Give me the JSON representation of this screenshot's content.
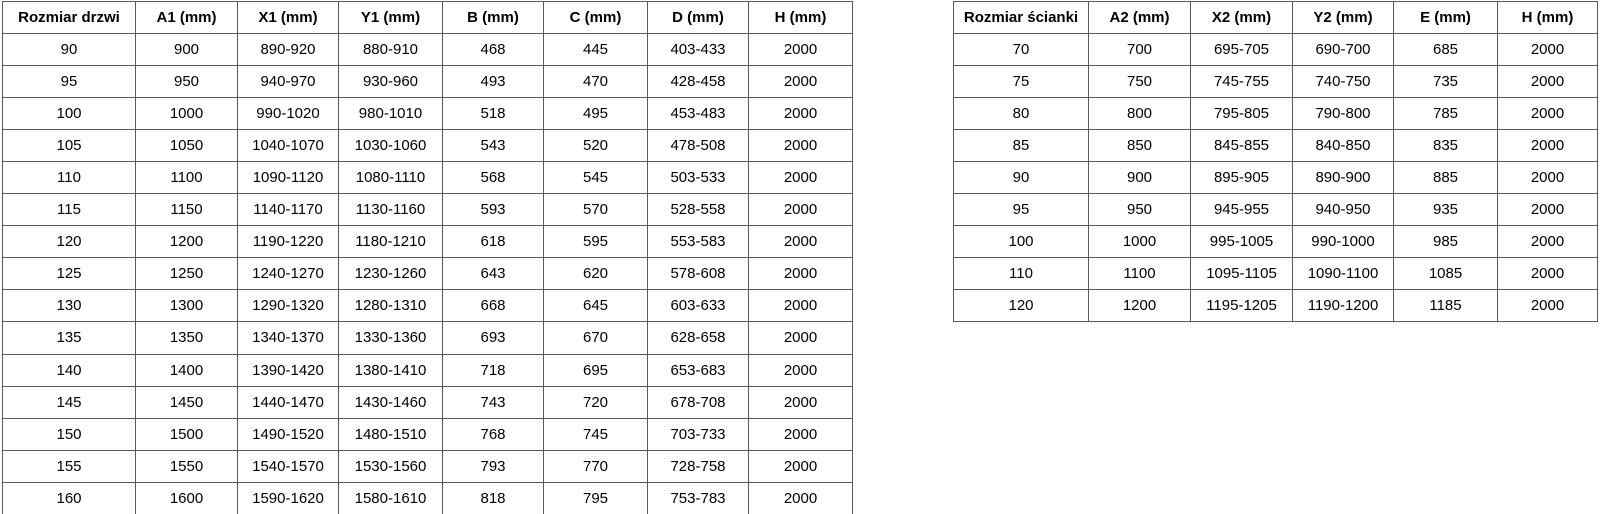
{
  "page": {
    "background_color": "#ffffff",
    "border_color": "#595959",
    "text_color": "#000000"
  },
  "tables": [
    {
      "name": "door-size-table",
      "headers": [
        "Rozmiar drzwi",
        "A1 (mm)",
        "X1 (mm)",
        "Y1 (mm)",
        "B (mm)",
        "C (mm)",
        "D (mm)",
        "H (mm)"
      ],
      "rows": [
        [
          "90",
          "900",
          "890-920",
          "880-910",
          "468",
          "445",
          "403-433",
          "2000"
        ],
        [
          "95",
          "950",
          "940-970",
          "930-960",
          "493",
          "470",
          "428-458",
          "2000"
        ],
        [
          "100",
          "1000",
          "990-1020",
          "980-1010",
          "518",
          "495",
          "453-483",
          "2000"
        ],
        [
          "105",
          "1050",
          "1040-1070",
          "1030-1060",
          "543",
          "520",
          "478-508",
          "2000"
        ],
        [
          "110",
          "1100",
          "1090-1120",
          "1080-1110",
          "568",
          "545",
          "503-533",
          "2000"
        ],
        [
          "115",
          "1150",
          "1140-1170",
          "1130-1160",
          "593",
          "570",
          "528-558",
          "2000"
        ],
        [
          "120",
          "1200",
          "1190-1220",
          "1180-1210",
          "618",
          "595",
          "553-583",
          "2000"
        ],
        [
          "125",
          "1250",
          "1240-1270",
          "1230-1260",
          "643",
          "620",
          "578-608",
          "2000"
        ],
        [
          "130",
          "1300",
          "1290-1320",
          "1280-1310",
          "668",
          "645",
          "603-633",
          "2000"
        ],
        [
          "135",
          "1350",
          "1340-1370",
          "1330-1360",
          "693",
          "670",
          "628-658",
          "2000"
        ],
        [
          "140",
          "1400",
          "1390-1420",
          "1380-1410",
          "718",
          "695",
          "653-683",
          "2000"
        ],
        [
          "145",
          "1450",
          "1440-1470",
          "1430-1460",
          "743",
          "720",
          "678-708",
          "2000"
        ],
        [
          "150",
          "1500",
          "1490-1520",
          "1480-1510",
          "768",
          "745",
          "703-733",
          "2000"
        ],
        [
          "155",
          "1550",
          "1540-1570",
          "1530-1560",
          "793",
          "770",
          "728-758",
          "2000"
        ],
        [
          "160",
          "1600",
          "1590-1620",
          "1580-1610",
          "818",
          "795",
          "753-783",
          "2000"
        ]
      ]
    },
    {
      "name": "wall-panel-size-table",
      "headers": [
        "Rozmiar ścianki",
        "A2 (mm)",
        "X2 (mm)",
        "Y2 (mm)",
        "E (mm)",
        "H (mm)"
      ],
      "rows": [
        [
          "70",
          "700",
          "695-705",
          "690-700",
          "685",
          "2000"
        ],
        [
          "75",
          "750",
          "745-755",
          "740-750",
          "735",
          "2000"
        ],
        [
          "80",
          "800",
          "795-805",
          "790-800",
          "785",
          "2000"
        ],
        [
          "85",
          "850",
          "845-855",
          "840-850",
          "835",
          "2000"
        ],
        [
          "90",
          "900",
          "895-905",
          "890-900",
          "885",
          "2000"
        ],
        [
          "95",
          "950",
          "945-955",
          "940-950",
          "935",
          "2000"
        ],
        [
          "100",
          "1000",
          "995-1005",
          "990-1000",
          "985",
          "2000"
        ],
        [
          "110",
          "1100",
          "1095-1105",
          "1090-1100",
          "1085",
          "2000"
        ],
        [
          "120",
          "1200",
          "1195-1205",
          "1190-1200",
          "1185",
          "2000"
        ]
      ]
    }
  ]
}
